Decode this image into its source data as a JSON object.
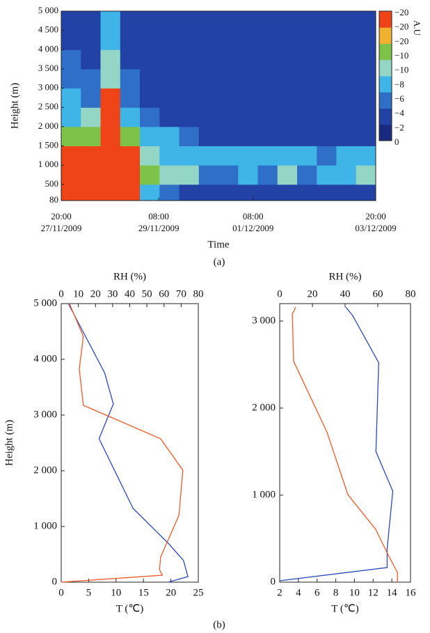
{
  "chart_data": [
    {
      "type": "heatmap",
      "ylabel": "Height (m)",
      "xlabel": "Time",
      "xticks": [
        [
          "20:00",
          "27/11/2009"
        ],
        [
          "08:00",
          "29/11/2009"
        ],
        [
          "08:00",
          "01/12/2009"
        ],
        [
          "20:00",
          "03/12/2009"
        ]
      ],
      "ylim": [
        80,
        5000
      ],
      "yticks": [
        80,
        500,
        {
          "value": 1000,
          "label": "1 000"
        },
        {
          "value": 1500,
          "label": "1 500"
        },
        {
          "value": 2000,
          "label": "2 000"
        },
        {
          "value": 2500,
          "label": "2 500"
        },
        {
          "value": 3000,
          "label": "3 000"
        },
        {
          "value": 3500,
          "label": "3 500"
        },
        {
          "value": 4000,
          "label": "4 000"
        },
        {
          "value": 4500,
          "label": "4 500"
        },
        {
          "value": 5000,
          "label": "5 000"
        }
      ],
      "y_edges": [
        80,
        500,
        1000,
        1500,
        2000,
        2500,
        3000,
        3500,
        4000,
        4500,
        5000
      ],
      "z": [
        [
          -20,
          -20,
          -20,
          -10,
          -6,
          -6,
          -4,
          -4,
          -2,
          -2
        ],
        [
          -20,
          -20,
          -20,
          -10,
          -8,
          -4,
          -4,
          -2,
          -2,
          -2
        ],
        [
          -20,
          -20,
          -20,
          -20,
          -20,
          -20,
          -8,
          -8,
          -6,
          -6
        ],
        [
          -20,
          -20,
          -20,
          -10,
          -6,
          -4,
          -4,
          -2,
          -2,
          -2
        ],
        [
          -6,
          -10,
          -8,
          -6,
          -4,
          -2,
          -2,
          -2,
          -2,
          -2
        ],
        [
          -4,
          -8,
          -6,
          -6,
          -2,
          -2,
          -2,
          -2,
          -2,
          -2
        ],
        [
          -2,
          -8,
          -6,
          -4,
          -2,
          -2,
          -2,
          -2,
          -2,
          -2
        ],
        [
          -2,
          -4,
          -6,
          -2,
          -2,
          -2,
          -2,
          -2,
          -2,
          -2
        ],
        [
          -2,
          -4,
          -6,
          -2,
          -2,
          -2,
          -2,
          -2,
          -2,
          -2
        ],
        [
          -2,
          -6,
          -6,
          -2,
          -2,
          -2,
          -2,
          -2,
          -2,
          -2
        ],
        [
          -2,
          -4,
          -6,
          -2,
          -2,
          -2,
          -2,
          -2,
          -2,
          -2
        ],
        [
          -2,
          -8,
          -6,
          -2,
          -2,
          -2,
          -2,
          -2,
          -2,
          -2
        ],
        [
          -2,
          -4,
          -6,
          -2,
          -2,
          -2,
          -2,
          -2,
          -2,
          -2
        ],
        [
          -2,
          -6,
          -4,
          -2,
          -2,
          -2,
          -2,
          -2,
          -2,
          -2
        ],
        [
          -2,
          -6,
          -6,
          -2,
          -2,
          -2,
          -2,
          -2,
          -2,
          -2
        ],
        [
          -2,
          -8,
          -6,
          -2,
          -2,
          -2,
          -2,
          -2,
          -2,
          -2
        ]
      ],
      "colorscale": [
        {
          "value": 0,
          "color": "#1a2a80"
        },
        {
          "value": -2,
          "color": "#2342a6"
        },
        {
          "value": -4,
          "color": "#2f6fc8"
        },
        {
          "value": -6,
          "color": "#3fb4e6"
        },
        {
          "value": -8,
          "color": "#94d6c6"
        },
        {
          "value": -10,
          "color": "#7ec24a"
        },
        {
          "value": -15,
          "color": "#f0b030"
        },
        {
          "value": -20,
          "color": "#ee4418"
        }
      ],
      "colorbar": {
        "label": "A.U",
        "ticklabels": [
          "−20",
          "−20",
          "−20",
          "−10",
          "−10",
          "−8",
          "−6",
          "−4",
          "−2",
          "0"
        ]
      }
    },
    {
      "type": "profile",
      "ylabel": "Height (m)",
      "xlabel": "T (℃)",
      "x2label": "RH (%)",
      "xlim": [
        0,
        25
      ],
      "xticks": [
        0,
        5,
        10,
        15,
        20,
        25
      ],
      "x2lim": [
        0,
        80
      ],
      "x2ticks": [
        0,
        10,
        20,
        30,
        40,
        50,
        60,
        70,
        80
      ],
      "ylim": [
        0,
        5000
      ],
      "yticks": [
        0,
        {
          "value": 1000,
          "label": "1 000"
        },
        {
          "value": 2000,
          "label": "2 000"
        },
        {
          "value": 3000,
          "label": "3 000"
        },
        {
          "value": 4000,
          "label": "4 000"
        },
        {
          "value": 5000,
          "label": "5 000"
        }
      ],
      "series": [
        {
          "color": "#2a48b8",
          "axis": "x",
          "x": [
            19.5,
            23.1,
            22.3,
            19.5,
            13.1,
            6.9,
            9.5,
            7.9,
            1.3
          ],
          "y": [
            0,
            100,
            390,
            700,
            1325,
            2575,
            3200,
            3760,
            5000
          ]
        },
        {
          "color": "#ee5a2a",
          "axis": "x2",
          "x": [
            0,
            59,
            57.4,
            58,
            68.7,
            71,
            58,
            12.9,
            10.5,
            12.9,
            4.8
          ],
          "y": [
            0,
            125,
            225,
            450,
            1200,
            2010,
            2575,
            3175,
            3825,
            4410,
            5000
          ]
        }
      ]
    },
    {
      "type": "profile",
      "xlabel": "T (℃)",
      "x2label": "RH (%)",
      "xlim": [
        2,
        16
      ],
      "xticks": [
        2,
        4,
        6,
        8,
        10,
        12,
        14,
        16
      ],
      "x2lim": [
        0,
        80
      ],
      "x2ticks": [
        0,
        20,
        40,
        60,
        80
      ],
      "ylim": [
        0,
        3200
      ],
      "yticks": [
        0,
        {
          "value": 1000,
          "label": "1 000"
        },
        {
          "value": 2000,
          "label": "2 000"
        },
        {
          "value": 3000,
          "label": "3 000"
        }
      ],
      "series": [
        {
          "color": "#2a48b8",
          "axis": "x",
          "x": [
            2.0,
            13.5,
            13.5,
            14.1,
            12.3,
            12.6,
            9.8,
            9.07
          ],
          "y": [
            16,
            168,
            383,
            1045,
            1500,
            2522,
            3064,
            3160
          ]
        },
        {
          "color": "#ee5a2a",
          "axis": "x2",
          "x": [
            72,
            72,
            67,
            58.7,
            41.7,
            28.9,
            8.5,
            7.7,
            9.8
          ],
          "y": [
            0,
            112,
            287,
            607,
            1006,
            1724,
            2538,
            3080,
            3160
          ]
        }
      ]
    }
  ],
  "captions": [
    "(a)",
    "(b)"
  ]
}
